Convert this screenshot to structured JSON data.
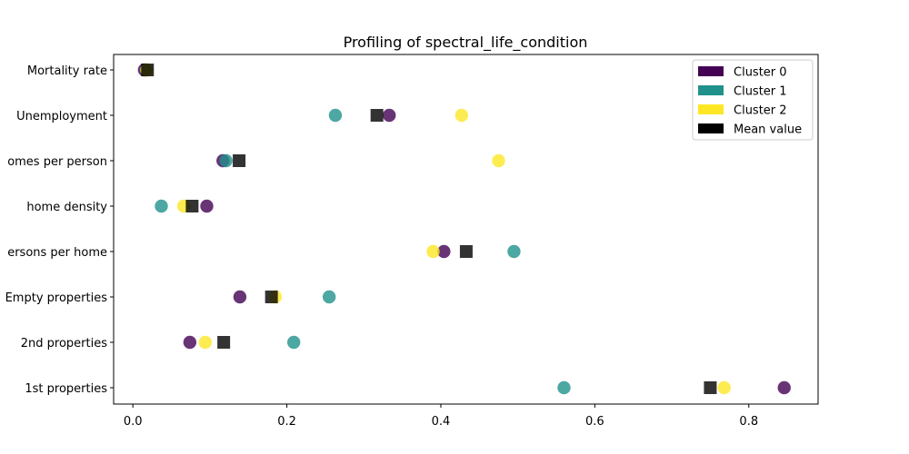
{
  "chart_data": {
    "type": "scatter",
    "title": "Profiling of spectral_life_condition",
    "xlabel": "",
    "ylabel": "",
    "xlim": [
      -0.025,
      0.89
    ],
    "x_ticks": [
      0.0,
      0.2,
      0.4,
      0.6,
      0.8
    ],
    "x_tick_labels": [
      "0.0",
      "0.2",
      "0.4",
      "0.6",
      "0.8"
    ],
    "categories": [
      "Mortality rate",
      "Unemployment",
      "Homes per person",
      "home density",
      "Persons per home",
      "Empty properties",
      "2nd properties",
      "1st properties"
    ],
    "category_tick_labels": [
      "Mortality rate",
      "Unemployment",
      "omes per person",
      "home density",
      "ersons per home",
      "Empty properties",
      "2nd properties",
      "1st properties"
    ],
    "series": [
      {
        "name": "Cluster 0",
        "color": "#440154",
        "marker": "circle",
        "values": [
          0.015,
          0.333,
          0.117,
          0.096,
          0.404,
          0.139,
          0.074,
          0.846
        ]
      },
      {
        "name": "Cluster 1",
        "color": "#21918c",
        "marker": "circle",
        "values": [
          0.018,
          0.263,
          0.121,
          0.037,
          0.495,
          0.255,
          0.209,
          0.56
        ]
      },
      {
        "name": "Cluster 2",
        "color": "#fde725",
        "marker": "circle",
        "values": [
          0.018,
          0.427,
          0.475,
          0.066,
          0.39,
          0.185,
          0.094,
          0.768
        ]
      },
      {
        "name": "Mean value",
        "color": "#000000",
        "marker": "square",
        "values": [
          0.019,
          0.317,
          0.138,
          0.077,
          0.433,
          0.18,
          0.118,
          0.75
        ]
      }
    ],
    "grid": false,
    "legend_position": "top-right",
    "marker_alpha": 0.8
  }
}
